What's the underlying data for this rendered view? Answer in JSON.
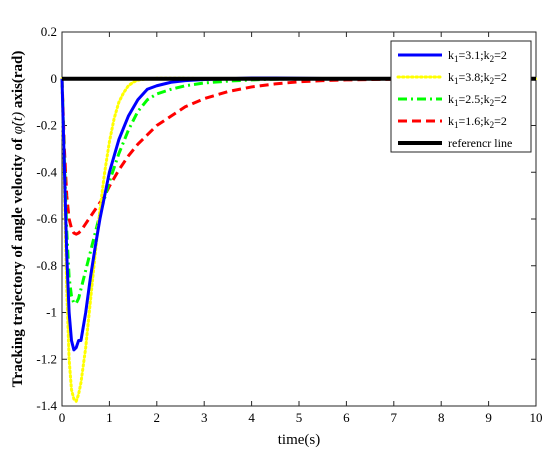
{
  "chart_data": {
    "type": "line",
    "xlabel": "time(s)",
    "ylabel": "Tracking trajectory of angle velocity of ",
    "ylabel_math": "φ̇(t)",
    "ylabel_suffix": " axis(rad)",
    "xlim": [
      0,
      10
    ],
    "ylim": [
      -1.4,
      0.2
    ],
    "xticks": [
      0,
      1,
      2,
      3,
      4,
      5,
      6,
      7,
      8,
      9,
      10
    ],
    "yticks": [
      0.2,
      0,
      -0.2,
      -0.4,
      -0.6,
      -0.8,
      -1,
      -1.2,
      -1.4
    ],
    "ytick_labels": [
      "0.2",
      "0",
      "-0.2",
      "-0.4",
      "-0.6",
      "-0.8",
      "-1",
      "-1.2",
      "-1.4"
    ],
    "grid": false,
    "legend_position": "top-right",
    "series": [
      {
        "name_k1": "k",
        "sub1": "1",
        "val1": "=3.1;k",
        "sub2": "2",
        "val2": "=2",
        "color": "#0000ff",
        "style": "solid",
        "width": 3,
        "x": [
          0,
          0.05,
          0.1,
          0.15,
          0.2,
          0.25,
          0.3,
          0.35,
          0.4,
          0.5,
          0.6,
          0.7,
          0.8,
          0.9,
          1.0,
          1.2,
          1.4,
          1.6,
          1.8,
          2.0,
          2.3,
          2.6,
          3.0,
          3.5,
          4.0,
          4.5,
          5.0,
          6.0,
          7.0,
          8.0,
          10.0
        ],
        "y": [
          0,
          -0.38,
          -0.75,
          -1.0,
          -1.12,
          -1.16,
          -1.15,
          -1.12,
          -1.12,
          -1.0,
          -0.85,
          -0.72,
          -0.6,
          -0.5,
          -0.4,
          -0.26,
          -0.16,
          -0.09,
          -0.045,
          -0.03,
          -0.015,
          -0.008,
          -0.003,
          0.0,
          0.003,
          0.003,
          0.002,
          0.0,
          0.0,
          0.0,
          0.0
        ]
      },
      {
        "name_k1": "k",
        "sub1": "1",
        "val1": "=3.8;k",
        "sub2": "2",
        "val2": "=2",
        "color": "#ffff00",
        "style": "dotted",
        "width": 3,
        "x": [
          0,
          0.05,
          0.1,
          0.15,
          0.2,
          0.25,
          0.3,
          0.35,
          0.4,
          0.5,
          0.6,
          0.7,
          0.8,
          0.9,
          1.0,
          1.1,
          1.2,
          1.3,
          1.4,
          1.5,
          1.6,
          1.8,
          2.0,
          2.5,
          3.0,
          4.0,
          5.0,
          6.0,
          7.0,
          8.0,
          10.0
        ],
        "y": [
          0,
          -0.45,
          -0.9,
          -1.2,
          -1.33,
          -1.37,
          -1.38,
          -1.35,
          -1.3,
          -1.15,
          -0.95,
          -0.75,
          -0.56,
          -0.4,
          -0.27,
          -0.17,
          -0.1,
          -0.06,
          -0.03,
          -0.015,
          -0.006,
          0.0,
          0.002,
          0.002,
          0.001,
          0.0,
          0.0,
          0.0,
          0.0,
          0.0,
          0.0
        ]
      },
      {
        "name_k1": "k",
        "sub1": "1",
        "val1": "=2.5;k",
        "sub2": "2",
        "val2": "=2",
        "color": "#00ff00",
        "style": "dashdot",
        "width": 3,
        "x": [
          0,
          0.05,
          0.1,
          0.15,
          0.2,
          0.25,
          0.3,
          0.35,
          0.4,
          0.45,
          0.5,
          0.6,
          0.7,
          0.8,
          0.9,
          1.0,
          1.2,
          1.4,
          1.6,
          1.8,
          2.0,
          2.3,
          2.6,
          3.0,
          3.5,
          4.0,
          4.5,
          5.0,
          6.0,
          8.0,
          10.0
        ],
        "y": [
          0,
          -0.35,
          -0.65,
          -0.85,
          -0.93,
          -0.96,
          -0.96,
          -0.94,
          -0.9,
          -0.86,
          -0.82,
          -0.74,
          -0.66,
          -0.58,
          -0.51,
          -0.44,
          -0.32,
          -0.22,
          -0.14,
          -0.09,
          -0.065,
          -0.045,
          -0.03,
          -0.018,
          -0.01,
          -0.005,
          -0.002,
          0.0,
          0.0,
          0.0,
          0.0
        ]
      },
      {
        "name_k1": "k",
        "sub1": "1",
        "val1": "=1.6;k",
        "sub2": "2",
        "val2": "=2",
        "color": "#ff0000",
        "style": "dashed",
        "width": 3,
        "x": [
          0,
          0.05,
          0.1,
          0.15,
          0.2,
          0.25,
          0.3,
          0.35,
          0.4,
          0.5,
          0.6,
          0.7,
          0.8,
          0.9,
          1.0,
          1.2,
          1.4,
          1.6,
          1.8,
          2.0,
          2.3,
          2.6,
          3.0,
          3.5,
          4.0,
          4.5,
          5.0,
          5.5,
          6.0,
          7.0,
          8.0,
          10.0
        ],
        "y": [
          0,
          -0.3,
          -0.5,
          -0.6,
          -0.64,
          -0.66,
          -0.665,
          -0.66,
          -0.65,
          -0.62,
          -0.59,
          -0.56,
          -0.53,
          -0.5,
          -0.46,
          -0.39,
          -0.33,
          -0.28,
          -0.24,
          -0.2,
          -0.16,
          -0.12,
          -0.085,
          -0.055,
          -0.035,
          -0.022,
          -0.013,
          -0.008,
          -0.005,
          -0.002,
          0.0,
          0.0
        ]
      },
      {
        "name_text": "referencr line",
        "color": "#000000",
        "style": "solid",
        "width": 4,
        "x": [
          0,
          10
        ],
        "y": [
          0,
          0
        ]
      }
    ]
  }
}
